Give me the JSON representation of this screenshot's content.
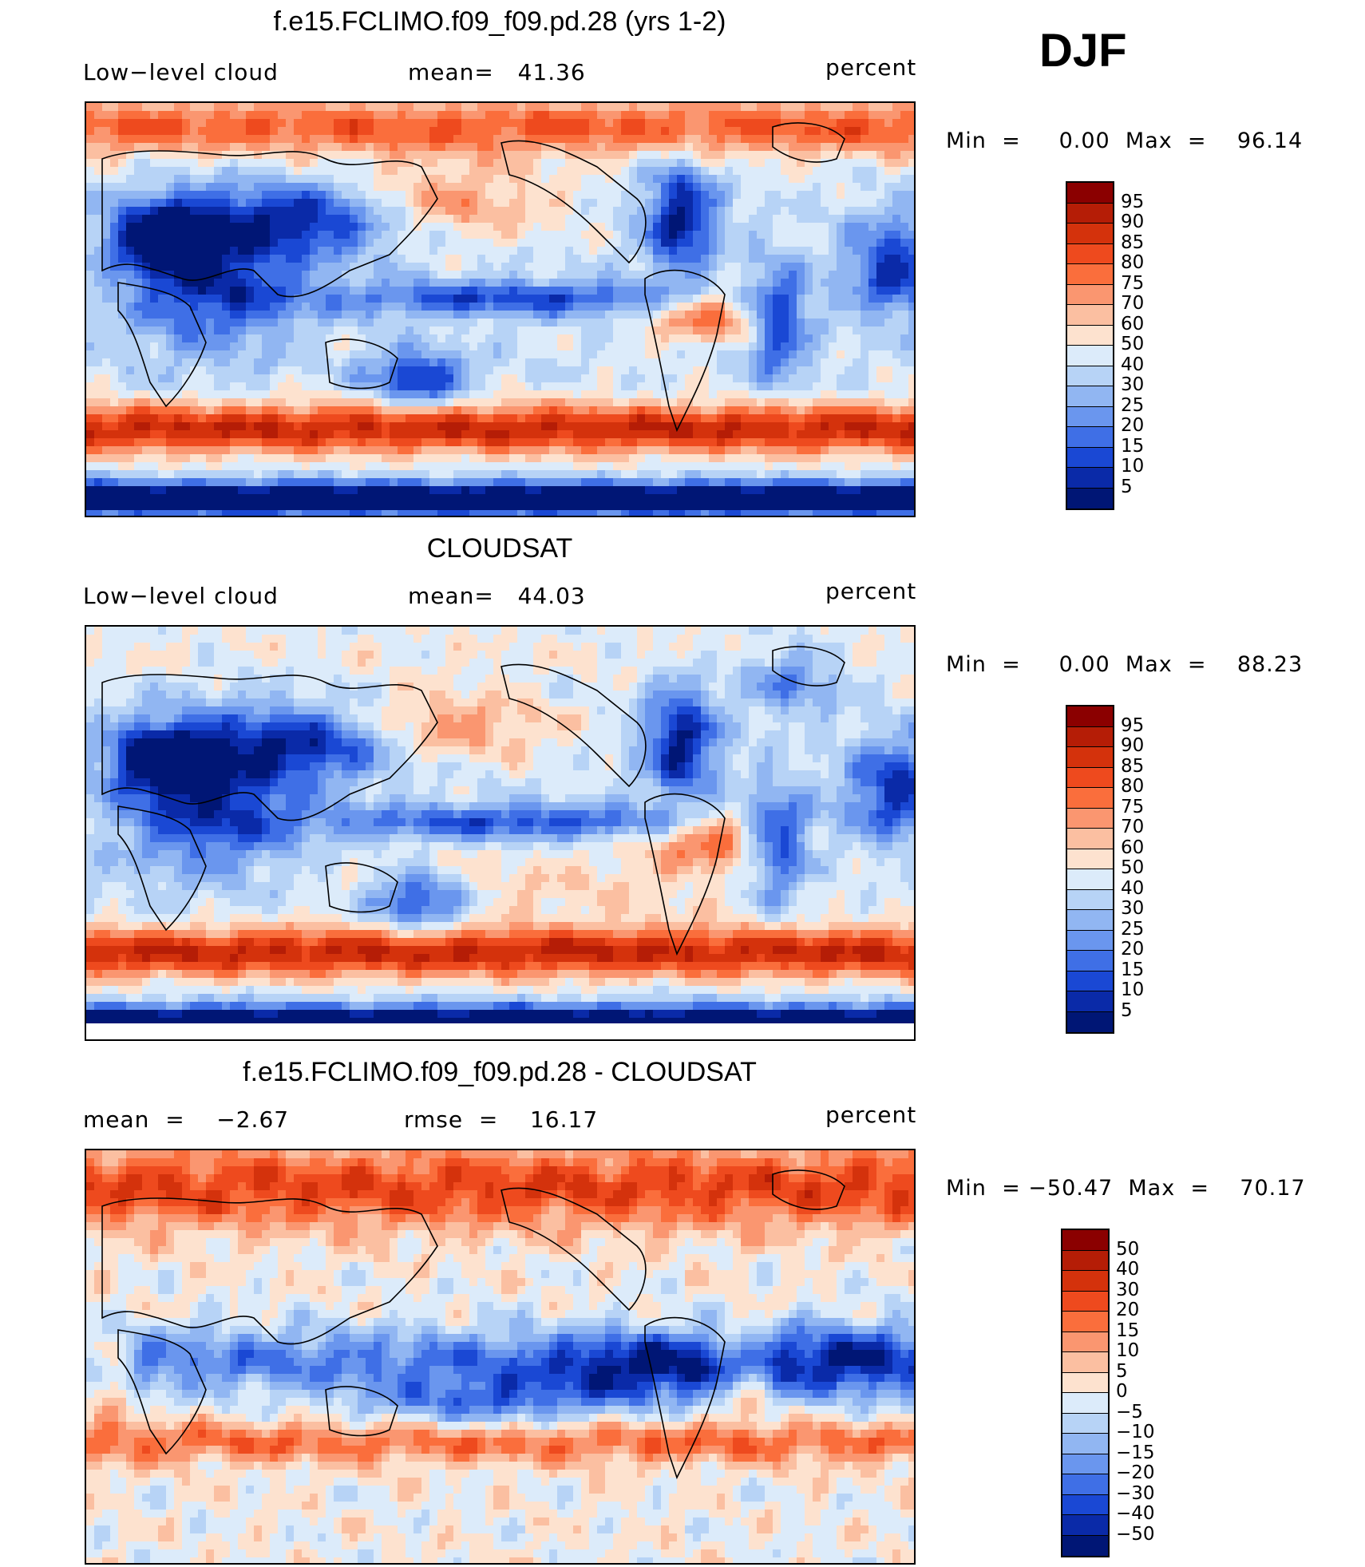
{
  "season": "DJF",
  "panels": [
    {
      "title": "f.e15.FCLIMO.f09_f09.pd.28 (yrs 1-2)",
      "left_text": "Low−level cloud",
      "center_text": "mean=   41.36",
      "units": "percent",
      "minmax": "Min  =     0.00  Max  =    96.14",
      "colorbar_labels": [
        "95",
        "90",
        "85",
        "80",
        "75",
        "70",
        "60",
        "50",
        "40",
        "30",
        "25",
        "20",
        "15",
        "10",
        "5"
      ],
      "colormap": "abs"
    },
    {
      "title": "CLOUDSAT",
      "left_text": "Low−level cloud",
      "center_text": "mean=   44.03",
      "units": "percent",
      "minmax": "Min  =     0.00  Max  =    88.23",
      "colorbar_labels": [
        "95",
        "90",
        "85",
        "80",
        "75",
        "70",
        "60",
        "50",
        "40",
        "30",
        "25",
        "20",
        "15",
        "10",
        "5"
      ],
      "colormap": "abs"
    },
    {
      "title": "f.e15.FCLIMO.f09_f09.pd.28 - CLOUDSAT",
      "left_text": "mean  =    −2.67",
      "center_text": "rmse  =    16.17",
      "units": "percent",
      "minmax": "Min  = −50.47  Max  =    70.17",
      "colorbar_labels": [
        "50",
        "40",
        "30",
        "20",
        "15",
        "10",
        "5",
        "0",
        "−5",
        "−10",
        "−15",
        "−20",
        "−30",
        "−40",
        "−50"
      ],
      "colormap": "diff"
    }
  ],
  "colors": {
    "scale": [
      "#8b0000",
      "#b51d06",
      "#d4320c",
      "#ee4a1e",
      "#fa6e3c",
      "#fa9670",
      "#fbbfa1",
      "#fde2cf",
      "#dcebfa",
      "#b7d3f6",
      "#91b6f2",
      "#6a96ee",
      "#3f6fe6",
      "#1a48d4",
      "#0a2aa8",
      "#001675"
    ]
  }
}
